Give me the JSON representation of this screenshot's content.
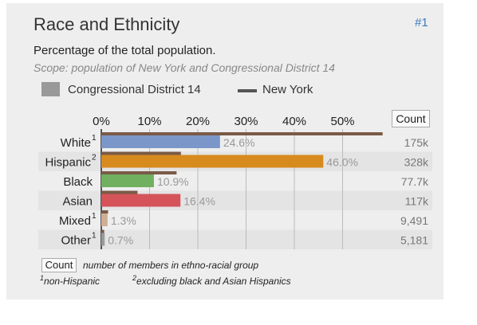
{
  "header": {
    "title": "Race and Ethnicity",
    "rank_link": "#1",
    "subtitle": "Percentage of the total population.",
    "scope": "Scope: population of New York and Congressional District 14"
  },
  "legend": {
    "district_label": "Congressional District 14",
    "state_label": "New York"
  },
  "count_header": "Count",
  "footnotes": {
    "count_button": "Count",
    "count_desc": "number of members in ethno-racial group",
    "note1_marker": "1",
    "note1_text": "non-Hispanic",
    "note2_marker": "2",
    "note2_text": "excluding black and Asian Hispanics"
  },
  "colors": {
    "panel_bg": "#eeeeee",
    "alt_row": "#e4e4e4",
    "grid": "#bbbbbb",
    "reference_bar": "#7a5a47",
    "value_label": "#999999",
    "count_label": "#777777",
    "link": "#3a7bbf"
  },
  "chart_data": {
    "type": "bar",
    "orientation": "horizontal",
    "x_ticks": [
      "0%",
      "10%",
      "20%",
      "30%",
      "40%",
      "50%"
    ],
    "xlim": [
      0,
      58
    ],
    "grid": true,
    "legend_position": "top",
    "categories": [
      {
        "label": "White",
        "sup": "1",
        "district": 24.6,
        "district_label": "24.6%",
        "new_york": 58.3,
        "count": "175k",
        "color": "#7b97c9"
      },
      {
        "label": "Hispanic",
        "sup": "2",
        "district": 46.0,
        "district_label": "46.0%",
        "new_york": 16.5,
        "count": "328k",
        "color": "#d78a1e"
      },
      {
        "label": "Black",
        "sup": "",
        "district": 10.9,
        "district_label": "10.9%",
        "new_york": 15.6,
        "count": "77.7k",
        "color": "#70b05e"
      },
      {
        "label": "Asian",
        "sup": "",
        "district": 16.4,
        "district_label": "16.4%",
        "new_york": 7.5,
        "count": "117k",
        "color": "#d4545a"
      },
      {
        "label": "Mixed",
        "sup": "1",
        "district": 1.3,
        "district_label": "1.3%",
        "new_york": 1.4,
        "count": "9,491",
        "color": "#cfae95"
      },
      {
        "label": "Other",
        "sup": "1",
        "district": 0.7,
        "district_label": "0.7%",
        "new_york": 0.6,
        "count": "5,181",
        "color": "#9a9a9a"
      }
    ],
    "series": [
      {
        "name": "Congressional District 14",
        "key": "district"
      },
      {
        "name": "New York",
        "key": "new_york"
      }
    ]
  }
}
